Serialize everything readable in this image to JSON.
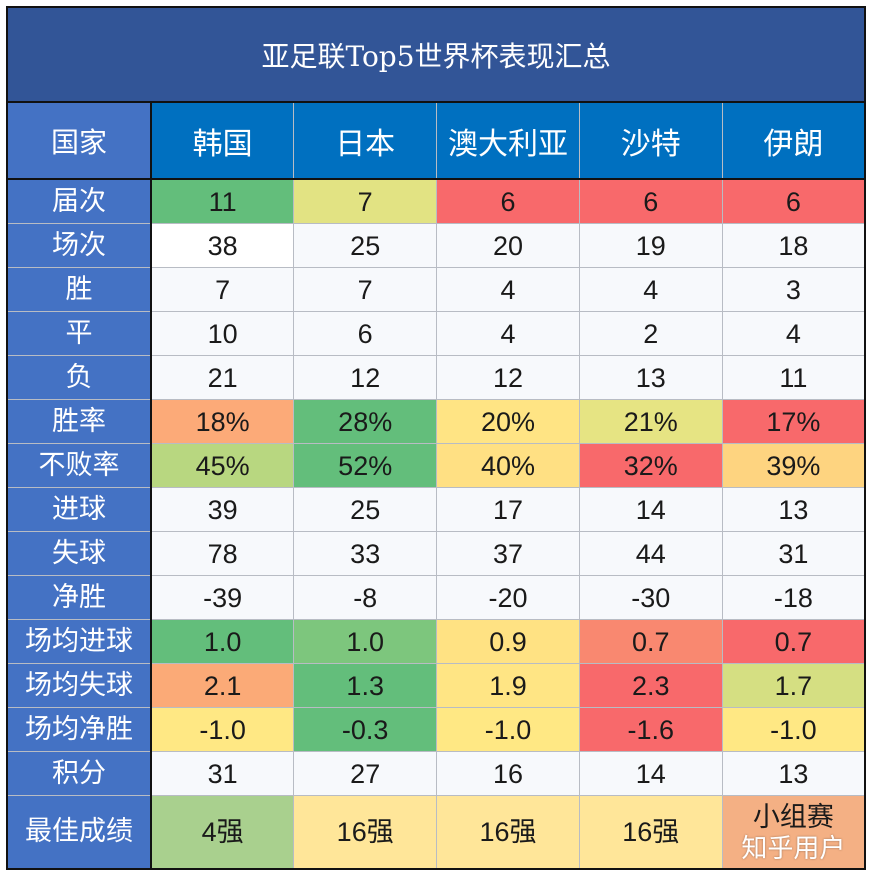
{
  "title": "亚足联Top5世界杯表现汇总",
  "header": {
    "label": "国家",
    "countries": [
      "韩国",
      "日本",
      "澳大利亚",
      "沙特",
      "伊朗"
    ]
  },
  "rows": [
    {
      "label": "届次",
      "values": [
        "11",
        "7",
        "6",
        "6",
        "6"
      ],
      "colors": [
        "#63BE7B",
        "#E2E383",
        "#F8696B",
        "#F8696B",
        "#F8696B"
      ]
    },
    {
      "label": "场次",
      "values": [
        "38",
        "25",
        "20",
        "19",
        "18"
      ],
      "colors": [
        "#FFFFFF",
        null,
        null,
        null,
        null
      ]
    },
    {
      "label": "胜",
      "values": [
        "7",
        "7",
        "4",
        "4",
        "3"
      ]
    },
    {
      "label": "平",
      "values": [
        "10",
        "6",
        "4",
        "2",
        "4"
      ]
    },
    {
      "label": "负",
      "values": [
        "21",
        "12",
        "12",
        "13",
        "11"
      ]
    },
    {
      "label": "胜率",
      "values": [
        "18%",
        "28%",
        "20%",
        "21%",
        "17%"
      ],
      "colors": [
        "#FCAA78",
        "#63BE7B",
        "#FFE484",
        "#E6E483",
        "#F8696B"
      ]
    },
    {
      "label": "不败率",
      "values": [
        "45%",
        "52%",
        "40%",
        "32%",
        "39%"
      ],
      "colors": [
        "#B8D780",
        "#63BE7B",
        "#FFE083",
        "#F8696B",
        "#FED480"
      ]
    },
    {
      "label": "进球",
      "values": [
        "39",
        "25",
        "17",
        "14",
        "13"
      ]
    },
    {
      "label": "失球",
      "values": [
        "78",
        "33",
        "37",
        "44",
        "31"
      ]
    },
    {
      "label": "净胜",
      "values": [
        "-39",
        "-8",
        "-20",
        "-30",
        "-18"
      ]
    },
    {
      "label": "场均进球",
      "values": [
        "1.0",
        "1.0",
        "0.9",
        "0.7",
        "0.7"
      ],
      "colors": [
        "#63BE7B",
        "#7DC67D",
        "#FFE283",
        "#F98870",
        "#F8696B"
      ]
    },
    {
      "label": "场均失球",
      "values": [
        "2.1",
        "1.3",
        "1.9",
        "2.3",
        "1.7"
      ],
      "colors": [
        "#FBAA77",
        "#63BE7B",
        "#FFE584",
        "#F8696B",
        "#D5DF82"
      ]
    },
    {
      "label": "场均净胜",
      "values": [
        "-1.0",
        "-0.3",
        "-1.0",
        "-1.6",
        "-1.0"
      ],
      "colors": [
        "#FFE884",
        "#63BE7B",
        "#FFE884",
        "#F8696B",
        "#FFE884"
      ]
    },
    {
      "label": "积分",
      "values": [
        "31",
        "27",
        "16",
        "14",
        "13"
      ]
    },
    {
      "label": "最佳成绩",
      "values": [
        "4强",
        "16强",
        "16强",
        "16强",
        "小组赛"
      ],
      "colors": [
        "#A9D08E",
        "#FFE699",
        "#FFE699",
        "#FFE699",
        "#F4B084"
      ]
    }
  ],
  "watermark": "知乎用户"
}
